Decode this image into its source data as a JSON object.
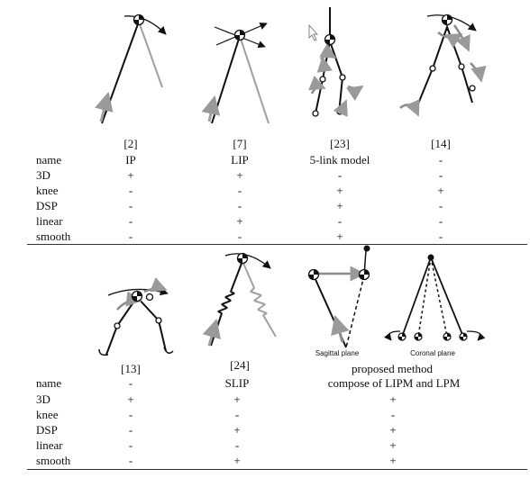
{
  "top": {
    "refs": [
      "[2]",
      "[7]",
      "[23]",
      "[14]"
    ],
    "rows": [
      {
        "label": "name",
        "values": [
          "IP",
          "LIP",
          "5-link model",
          "-"
        ]
      },
      {
        "label": "3D",
        "values": [
          "+",
          "+",
          "-",
          "-"
        ]
      },
      {
        "label": "knee",
        "values": [
          "-",
          "-",
          "+",
          "+"
        ]
      },
      {
        "label": "DSP",
        "values": [
          "-",
          "-",
          "+",
          "-"
        ]
      },
      {
        "label": "linear",
        "values": [
          "-",
          "+",
          "-",
          "-"
        ]
      },
      {
        "label": "smooth",
        "values": [
          "-",
          "-",
          "+",
          "-"
        ]
      }
    ]
  },
  "bottom": {
    "refs": [
      "[13]",
      "[24]"
    ],
    "method_title": "proposed method",
    "method_subtitle": "compose of LIPM and LPM",
    "plane_labels": [
      "Sagittal plane",
      "Coronal plane"
    ],
    "rows": [
      {
        "label": "name",
        "values": [
          "-",
          "SLIP",
          ""
        ]
      },
      {
        "label": "3D",
        "values": [
          "+",
          "+",
          "+"
        ]
      },
      {
        "label": "knee",
        "values": [
          "-",
          "-",
          "-"
        ]
      },
      {
        "label": "DSP",
        "values": [
          "-",
          "+",
          "+"
        ]
      },
      {
        "label": "linear",
        "values": [
          "-",
          "-",
          "+"
        ]
      },
      {
        "label": "smooth",
        "values": [
          "-",
          "+",
          "+"
        ]
      }
    ]
  },
  "colors": {
    "ink": "#111111",
    "gray": "#a0a0a0"
  }
}
